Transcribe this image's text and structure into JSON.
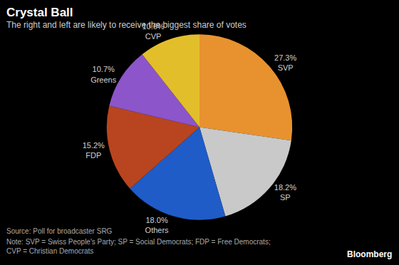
{
  "chart_data": {
    "type": "pie",
    "title": "Crystal Ball",
    "subtitle": "The right and left are likely to receive the biggest share of votes",
    "categories": [
      "SVP",
      "SP",
      "Others",
      "FDP",
      "Greens",
      "CVP"
    ],
    "values": [
      27.3,
      18.2,
      18.0,
      15.2,
      10.7,
      10.6
    ],
    "value_labels": [
      "27.3%",
      "18.2%",
      "18.0%",
      "15.2%",
      "10.7%",
      "10.6%"
    ],
    "colors": [
      "#e8922f",
      "#c9c9c9",
      "#1f5cc8",
      "#b8451f",
      "#8c55c9",
      "#e3be2b"
    ],
    "data_labels": true,
    "source": "Source: Poll for broadcaster SRG",
    "note": [
      "Note: SVP = Swiss People's Party; SP = Social Democrats; FDP = Free Democrats;",
      "CVP = Christian Democrats"
    ],
    "credit": "Bloomberg"
  }
}
